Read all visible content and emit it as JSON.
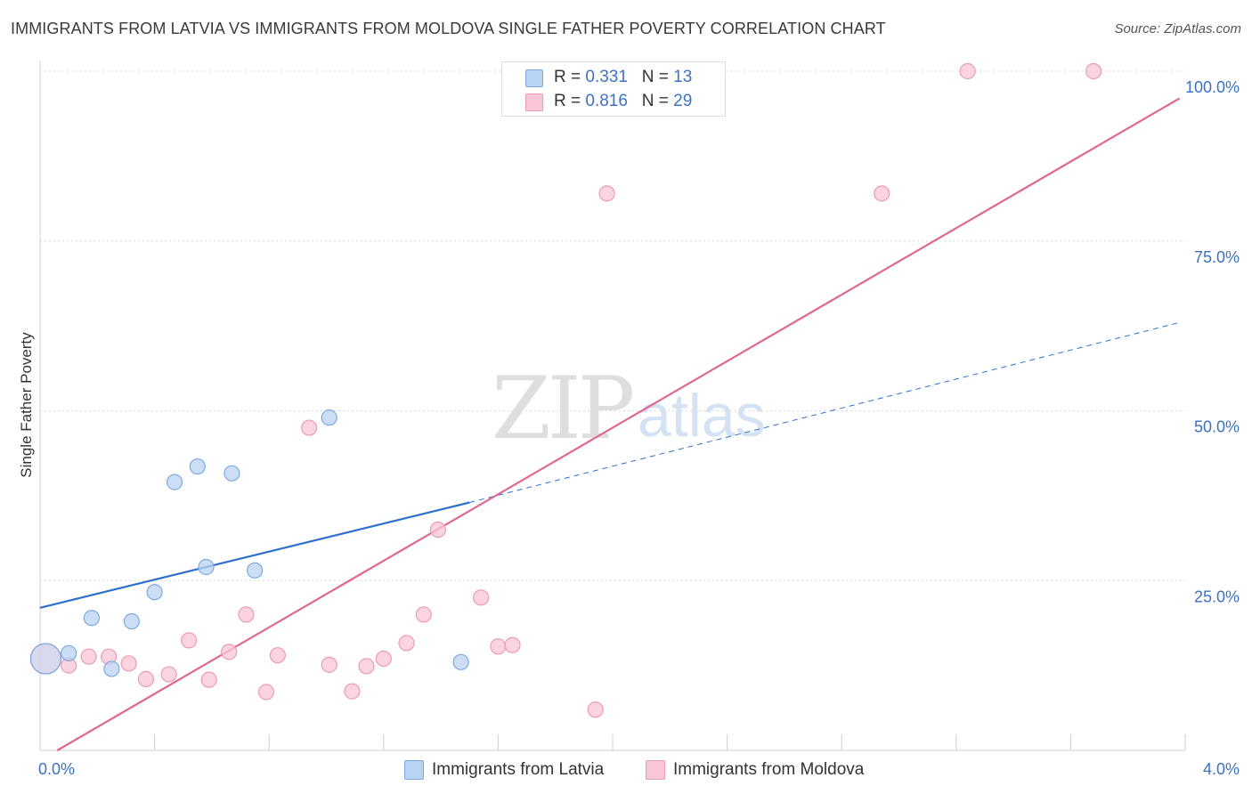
{
  "title": "IMMIGRANTS FROM LATVIA VS IMMIGRANTS FROM MOLDOVA SINGLE FATHER POVERTY CORRELATION CHART",
  "source": "Source: ZipAtlas.com",
  "watermark": {
    "zip": "ZIP",
    "atlas": "atlas"
  },
  "legend_top": {
    "rows": [
      {
        "r_label": "R =",
        "r_value": "0.331",
        "n_label": "N =",
        "n_value": "13"
      },
      {
        "r_label": "R =",
        "r_value": "0.816",
        "n_label": "N =",
        "n_value": "29"
      }
    ]
  },
  "colors": {
    "latvia_fill": "#b9d3f3",
    "latvia_stroke": "#7ea9e0",
    "latvia_line": "#2d6fcc",
    "moldova_fill": "#f9c6d6",
    "moldova_stroke": "#eb9bb5",
    "moldova_line": "#e0678f",
    "tick_text": "#3b72c4",
    "grid": "#d9d9d9"
  },
  "chart_data": {
    "type": "scatter",
    "title": "IMMIGRANTS FROM LATVIA VS IMMIGRANTS FROM MOLDOVA SINGLE FATHER POVERTY CORRELATION CHART",
    "xlabel": "",
    "ylabel": "Single Father Poverty",
    "xlim": [
      0,
      4.0
    ],
    "ylim": [
      0,
      100
    ],
    "x_tick_labels": [
      {
        "value": 0,
        "label": "0.0%"
      },
      {
        "value": 4.0,
        "label": "4.0%"
      }
    ],
    "y_tick_labels": [
      {
        "value": 25,
        "label": "25.0%"
      },
      {
        "value": 50,
        "label": "50.0%"
      },
      {
        "value": 75,
        "label": "75.0%"
      },
      {
        "value": 100,
        "label": "100.0%"
      }
    ],
    "x_minor_ticks": [
      0.4,
      0.8,
      1.2,
      1.6,
      2.0,
      2.4,
      2.8,
      3.2,
      3.6,
      4.0
    ],
    "grid": true,
    "series": [
      {
        "name": "Immigrants from Latvia",
        "R": 0.331,
        "N": 13,
        "points": [
          {
            "x": 0.02,
            "y": 13.5,
            "big": true
          },
          {
            "x": 0.1,
            "y": 14.3
          },
          {
            "x": 0.18,
            "y": 19.5
          },
          {
            "x": 0.25,
            "y": 12.0
          },
          {
            "x": 0.32,
            "y": 19.0
          },
          {
            "x": 0.4,
            "y": 23.3
          },
          {
            "x": 0.47,
            "y": 39.5
          },
          {
            "x": 0.55,
            "y": 41.8
          },
          {
            "x": 0.58,
            "y": 27.0
          },
          {
            "x": 0.67,
            "y": 40.8
          },
          {
            "x": 0.75,
            "y": 26.5
          },
          {
            "x": 1.01,
            "y": 49.0
          },
          {
            "x": 1.47,
            "y": 13.0
          }
        ],
        "trend": {
          "x0": 0.0,
          "y0": 21.0,
          "x1": 1.5,
          "y1": 36.5,
          "dashed_to_x": 3.98,
          "dashed_to_y": 63.0
        }
      },
      {
        "name": "Immigrants from Moldova",
        "R": 0.816,
        "N": 29,
        "points": [
          {
            "x": 0.02,
            "y": 13.5,
            "big": true
          },
          {
            "x": 0.1,
            "y": 12.5
          },
          {
            "x": 0.17,
            "y": 13.8
          },
          {
            "x": 0.24,
            "y": 13.8
          },
          {
            "x": 0.31,
            "y": 12.8
          },
          {
            "x": 0.37,
            "y": 10.5
          },
          {
            "x": 0.45,
            "y": 11.2
          },
          {
            "x": 0.52,
            "y": 16.2
          },
          {
            "x": 0.59,
            "y": 10.4
          },
          {
            "x": 0.66,
            "y": 14.5
          },
          {
            "x": 0.72,
            "y": 20.0
          },
          {
            "x": 0.79,
            "y": 8.6
          },
          {
            "x": 0.83,
            "y": 14.0
          },
          {
            "x": 0.94,
            "y": 47.5
          },
          {
            "x": 1.01,
            "y": 12.6
          },
          {
            "x": 1.09,
            "y": 8.7
          },
          {
            "x": 1.14,
            "y": 12.4
          },
          {
            "x": 1.2,
            "y": 13.5
          },
          {
            "x": 1.28,
            "y": 15.8
          },
          {
            "x": 1.34,
            "y": 20.0
          },
          {
            "x": 1.39,
            "y": 32.5
          },
          {
            "x": 1.54,
            "y": 22.5
          },
          {
            "x": 1.6,
            "y": 15.3
          },
          {
            "x": 1.65,
            "y": 15.5
          },
          {
            "x": 1.94,
            "y": 6.0
          },
          {
            "x": 1.98,
            "y": 82.0
          },
          {
            "x": 2.94,
            "y": 82.0
          },
          {
            "x": 3.24,
            "y": 100.0
          },
          {
            "x": 3.68,
            "y": 100.0
          }
        ],
        "trend": {
          "x0": 0.06,
          "y0": 0.0,
          "x1": 3.98,
          "y1": 96.0
        }
      }
    ]
  }
}
